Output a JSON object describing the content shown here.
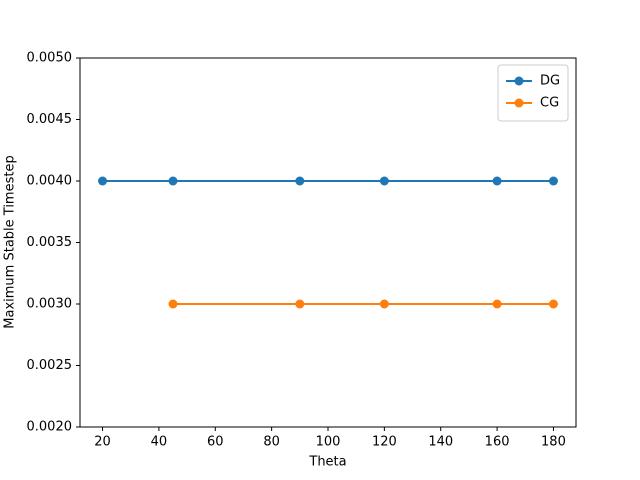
{
  "chart_data": {
    "type": "line",
    "x_label": "Theta",
    "y_label": "Maximum Stable Timestep",
    "x": [
      20,
      45,
      90,
      120,
      160,
      180
    ],
    "series": [
      {
        "name": "DG",
        "color": "#1f77b4",
        "values": [
          0.004,
          0.004,
          0.004,
          0.004,
          0.004,
          0.004
        ]
      },
      {
        "name": "CG",
        "color": "#ff7f0e",
        "values": [
          null,
          0.003,
          0.003,
          0.003,
          0.003,
          0.003
        ]
      }
    ],
    "xlim": [
      12,
      188
    ],
    "xticks": [
      20,
      40,
      60,
      80,
      100,
      120,
      140,
      160,
      180
    ],
    "ylim": [
      0.002,
      0.005
    ],
    "yticks": [
      {
        "value": 0.002,
        "label": "0.0020"
      },
      {
        "value": 0.0025,
        "label": "0.0025"
      },
      {
        "value": 0.003,
        "label": "0.0030"
      },
      {
        "value": 0.0035,
        "label": "0.0035"
      },
      {
        "value": 0.004,
        "label": "0.0040"
      },
      {
        "value": 0.0045,
        "label": "0.0045"
      },
      {
        "value": 0.005,
        "label": "0.0050"
      }
    ],
    "legend": "upper right",
    "grid": false
  }
}
